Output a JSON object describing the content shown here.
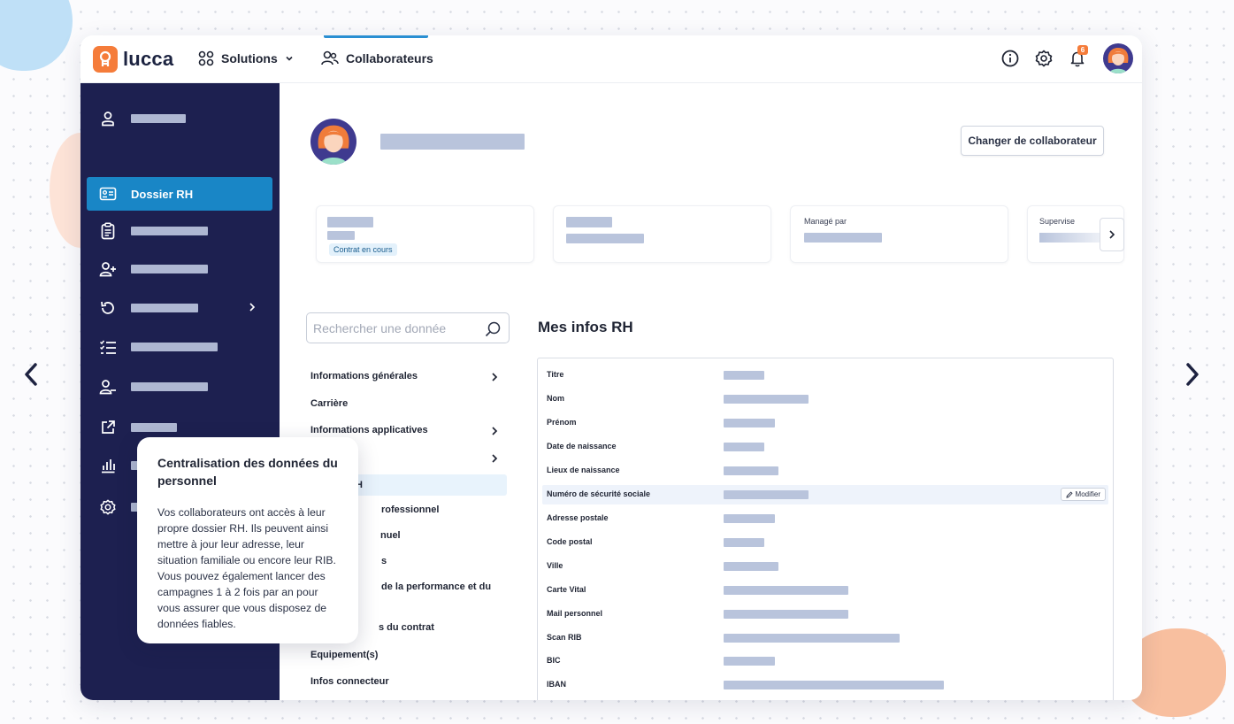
{
  "app": {
    "brand": "lucca",
    "nav_solutions": "Solutions",
    "nav_collaborateurs": "Collaborateurs",
    "notification_count": "6",
    "colors": {
      "accent": "#1986c6",
      "sidebar": "#1d2050",
      "brand_orange": "#f57c3a",
      "skeleton": "#b9c4dc"
    }
  },
  "sidebar": {
    "active_label": "Dossier RH",
    "icons": [
      "user-icon",
      "id-card-icon",
      "clipboard-icon",
      "user-plus-icon",
      "refresh-icon",
      "checklist-icon",
      "user-minus-icon",
      "external-link-icon",
      "bar-chart-icon",
      "settings-icon"
    ]
  },
  "profile": {
    "change_button": "Changer de collaborateur"
  },
  "cards": {
    "contract_badge": "Contrat en cours",
    "managed_by": "Managé par",
    "supervises": "Supervise"
  },
  "search": {
    "placeholder": "Rechercher une donnée"
  },
  "menu": {
    "items": [
      "Informations générales",
      "Carrière",
      "Informations applicatives",
      "",
      "Mes infos RH",
      "Parcours professionnel",
      "Entretien annuel",
      "Absences",
      "Gestion de la performance et du",
      "Informations du contrat",
      "Equipement(s)",
      "Infos connecteur"
    ],
    "visible": [
      "Informations générales",
      "Carrière",
      "Informations applicatives",
      "H",
      "rofessionnel",
      "nuel",
      "s",
      "de la performance et du",
      "s du contrat",
      "Equipement(s)",
      "Infos connecteur"
    ]
  },
  "main": {
    "section_title": "Mes infos RH",
    "modify_label": "Modifier",
    "fields": [
      "Titre",
      "Nom",
      "Prénom",
      "Date de naissance",
      "Lieux de naissance",
      "Numéro de sécurité sociale",
      "Adresse postale",
      "Code postal",
      "Ville",
      "Carte Vital",
      "Mail personnel",
      "Scan RIB",
      "BIC",
      "IBAN"
    ]
  },
  "tooltip": {
    "title": "Centralisation des données du personnel",
    "body": "Vos collaborateurs ont accès à leur propre dossier RH. Ils peuvent ainsi mettre à jour leur adresse, leur situation familiale ou encore leur RIB. Vous pouvez également lancer des campagnes 1 à 2 fois par an pour vous assurer que vous disposez de données fiables."
  }
}
